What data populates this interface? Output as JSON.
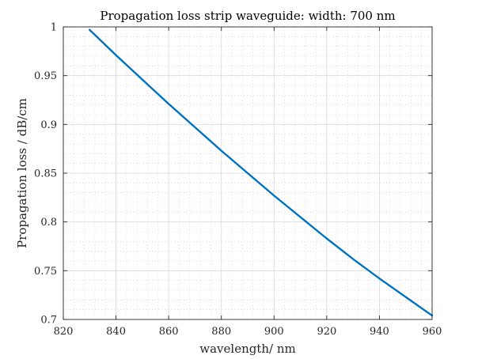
{
  "chart_data": {
    "type": "line",
    "title": "Propagation loss strip waveguide: width: 700 nm",
    "xlabel": "wavelength/ nm",
    "ylabel": "Propagation loss / dB/cm",
    "xlim": [
      820,
      960
    ],
    "ylim": [
      0.7,
      1.0
    ],
    "xticks": [
      820,
      840,
      860,
      880,
      900,
      920,
      940,
      960
    ],
    "yticks": [
      0.7,
      0.75,
      0.8,
      0.85,
      0.9,
      0.95,
      1.0
    ],
    "xtick_labels": [
      "820",
      "840",
      "860",
      "880",
      "900",
      "920",
      "940",
      "960"
    ],
    "ytick_labels": [
      "0.7",
      "0.75",
      "0.8",
      "0.85",
      "0.9",
      "0.95",
      "1"
    ],
    "x_minor_step": 4,
    "y_minor_step": 0.01,
    "grid": true,
    "minor_grid": true,
    "series": [
      {
        "color": "#0072bd",
        "x": [
          830,
          840,
          850,
          860,
          870,
          880,
          890,
          900,
          910,
          920,
          930,
          940,
          950,
          960
        ],
        "y": [
          0.997,
          0.971,
          0.946,
          0.921,
          0.897,
          0.873,
          0.85,
          0.827,
          0.805,
          0.783,
          0.762,
          0.742,
          0.723,
          0.704
        ]
      }
    ]
  }
}
